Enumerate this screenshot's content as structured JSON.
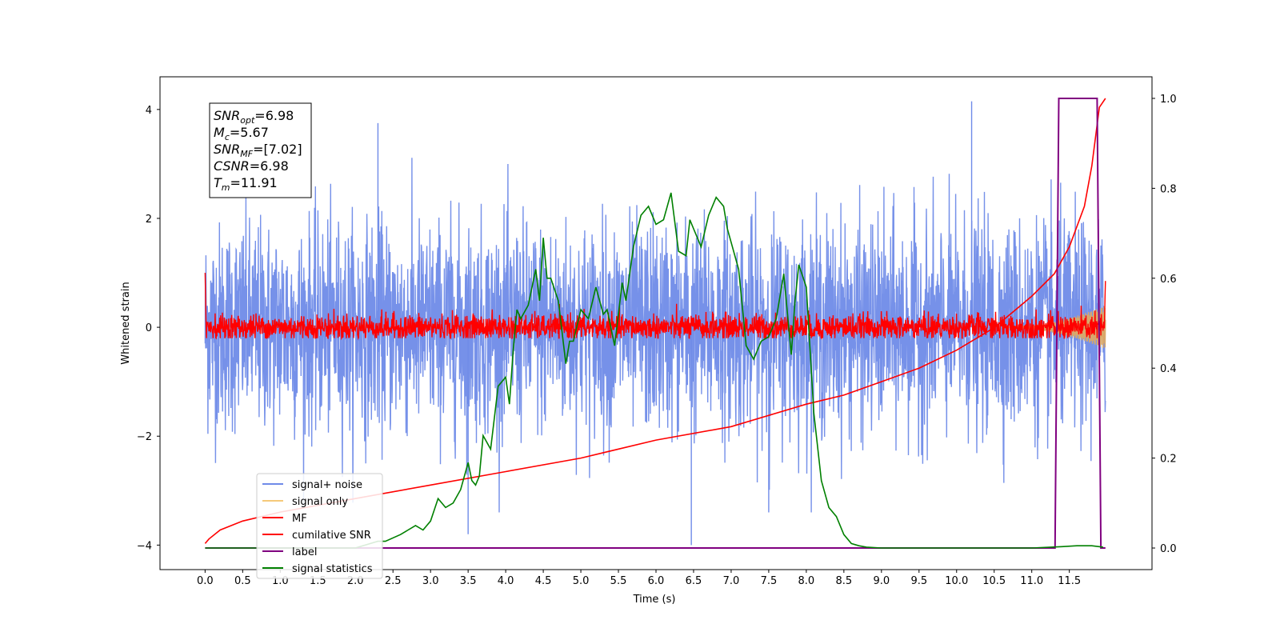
{
  "chart_data": {
    "type": "line",
    "xlabel": "Time (s)",
    "ylabel": "Whitened strain",
    "xlim": [
      -0.6,
      12.6
    ],
    "ylim": [
      -4.45,
      4.6
    ],
    "y2lim": [
      -0.048,
      1.048
    ],
    "x_ticks": [
      0.0,
      0.5,
      1.0,
      1.5,
      2.0,
      2.5,
      3.0,
      3.5,
      4.0,
      4.5,
      5.0,
      5.5,
      6.0,
      6.5,
      7.0,
      7.5,
      8.0,
      8.5,
      9.0,
      9.5,
      10.0,
      10.5,
      11.0,
      11.5
    ],
    "x_tick_labels": [
      "0.0",
      "0.5",
      "1.0",
      "1.5",
      "2.0",
      "2.5",
      "3.0",
      "3.5",
      "4.0",
      "4.5",
      "5.0",
      "5.5",
      "6.0",
      "6.5",
      "7.0",
      "7.5",
      "8.0",
      "8.5",
      "9.0",
      "9.5",
      "10.0",
      "10.5",
      "11.0",
      "11.5"
    ],
    "y_ticks": [
      -4,
      -2,
      0,
      2,
      4
    ],
    "y_tick_labels": [
      "−4",
      "−2",
      "0",
      "2",
      "4"
    ],
    "y2_ticks": [
      0.0,
      0.2,
      0.4,
      0.6,
      0.8,
      1.0
    ],
    "y2_tick_labels": [
      "0.0",
      "0.2",
      "0.4",
      "0.6",
      "0.8",
      "1.0"
    ],
    "legend_position": "lower-left",
    "grid": false,
    "info_box": [
      {
        "base": "SNR",
        "sub": "opt",
        "value": "=6.98"
      },
      {
        "base": "M",
        "sub": "c",
        "value": "=5.67"
      },
      {
        "base": "SNR",
        "sub": "MF",
        "value": "=[7.02]"
      },
      {
        "base": "CSNR",
        "sub": "",
        "value": "=6.98"
      },
      {
        "base": "T",
        "sub": "m",
        "value": "=11.91"
      }
    ],
    "series": [
      {
        "name": "signal+ noise",
        "axis": "left",
        "color": "#6f8be8",
        "kind": "noise",
        "x_range": [
          0.0,
          11.98
        ],
        "amplitude_std": 0.95,
        "spikes": [
          {
            "x": 2.3,
            "y": 3.75
          },
          {
            "x": 6.47,
            "y": -4.0
          },
          {
            "x": 10.2,
            "y": 4.15
          },
          {
            "x": 3.5,
            "y": -3.8
          },
          {
            "x": 7.5,
            "y": -3.4
          }
        ]
      },
      {
        "name": "signal only",
        "axis": "left",
        "color": "#f5c97a",
        "kind": "chirp",
        "x_range": [
          10.6,
          11.98
        ],
        "envelope_max": 0.4
      },
      {
        "name": "MF",
        "axis": "left",
        "color": "#ff0000",
        "kind": "noise",
        "x_range": [
          0.0,
          11.98
        ],
        "amplitude_std": 0.12,
        "start_value": 1.0,
        "end_value": 0.85
      },
      {
        "name": "cumilative SNR",
        "axis": "right",
        "color": "#ff0000",
        "x": [
          0.0,
          0.05,
          0.2,
          0.5,
          1.0,
          2.0,
          3.0,
          4.0,
          5.0,
          6.0,
          7.0,
          8.0,
          8.5,
          9.0,
          9.5,
          10.0,
          10.5,
          11.0,
          11.3,
          11.5,
          11.7,
          11.8,
          11.9,
          11.98
        ],
        "y": [
          0.01,
          0.02,
          0.04,
          0.06,
          0.08,
          0.11,
          0.14,
          0.17,
          0.2,
          0.24,
          0.27,
          0.32,
          0.34,
          0.37,
          0.4,
          0.44,
          0.49,
          0.56,
          0.61,
          0.67,
          0.76,
          0.85,
          0.98,
          1.0
        ]
      },
      {
        "name": "label",
        "axis": "right",
        "color": "#800080",
        "x": [
          0.0,
          11.31,
          11.36,
          11.87,
          11.92,
          11.98
        ],
        "y": [
          0.0,
          0.0,
          1.0,
          1.0,
          0.0,
          0.0
        ]
      },
      {
        "name": "signal statistics",
        "axis": "right",
        "color": "#008000",
        "x": [
          0.0,
          0.5,
          1.0,
          1.5,
          2.0,
          2.3,
          2.4,
          2.6,
          2.8,
          2.9,
          3.0,
          3.1,
          3.2,
          3.3,
          3.4,
          3.5,
          3.55,
          3.6,
          3.65,
          3.7,
          3.8,
          3.9,
          4.0,
          4.05,
          4.1,
          4.15,
          4.2,
          4.3,
          4.4,
          4.45,
          4.5,
          4.55,
          4.6,
          4.7,
          4.8,
          4.85,
          4.9,
          5.0,
          5.1,
          5.2,
          5.3,
          5.35,
          5.45,
          5.55,
          5.6,
          5.7,
          5.8,
          5.9,
          6.0,
          6.1,
          6.2,
          6.3,
          6.4,
          6.45,
          6.5,
          6.6,
          6.7,
          6.8,
          6.9,
          6.95,
          7.0,
          7.1,
          7.2,
          7.3,
          7.4,
          7.5,
          7.6,
          7.7,
          7.8,
          7.85,
          7.9,
          8.0,
          8.1,
          8.2,
          8.3,
          8.4,
          8.5,
          8.6,
          8.7,
          8.8,
          9.0,
          10.0,
          11.0,
          11.4,
          11.6,
          11.8,
          11.95
        ],
        "y": [
          0.0,
          0.0,
          0.0,
          0.0,
          0.0,
          0.015,
          0.015,
          0.03,
          0.05,
          0.04,
          0.06,
          0.11,
          0.09,
          0.1,
          0.13,
          0.19,
          0.15,
          0.14,
          0.16,
          0.25,
          0.22,
          0.36,
          0.38,
          0.32,
          0.44,
          0.53,
          0.51,
          0.54,
          0.62,
          0.55,
          0.69,
          0.6,
          0.6,
          0.55,
          0.41,
          0.46,
          0.46,
          0.53,
          0.51,
          0.58,
          0.52,
          0.53,
          0.45,
          0.59,
          0.55,
          0.67,
          0.74,
          0.76,
          0.72,
          0.73,
          0.79,
          0.66,
          0.65,
          0.73,
          0.71,
          0.67,
          0.74,
          0.78,
          0.76,
          0.71,
          0.68,
          0.62,
          0.45,
          0.42,
          0.46,
          0.47,
          0.51,
          0.61,
          0.43,
          0.55,
          0.63,
          0.58,
          0.3,
          0.15,
          0.09,
          0.07,
          0.03,
          0.01,
          0.005,
          0.002,
          0.0,
          0.0,
          0.0,
          0.003,
          0.005,
          0.005,
          0.002
        ]
      }
    ]
  }
}
